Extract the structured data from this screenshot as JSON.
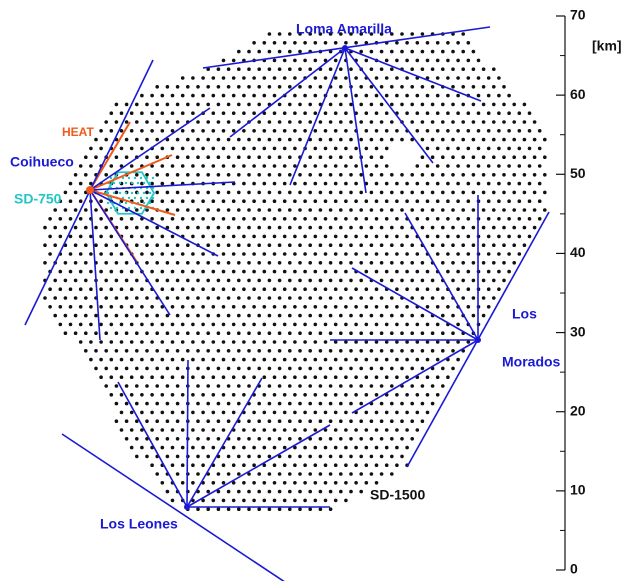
{
  "map": {
    "sites": {
      "loma_amarilla": "Loma Amarilla",
      "coihueco": "Coihueco",
      "heat": "HEAT",
      "sd_750": "SD-750",
      "los_morados": [
        "Los",
        "Morados"
      ],
      "los_leones": "Los Leones",
      "sd_1500": "SD-1500"
    },
    "scale": {
      "unit": "[km]",
      "lim": [
        0,
        70
      ],
      "ticks": [
        0,
        10,
        20,
        30,
        40,
        50,
        60,
        70
      ],
      "minor_ticks": [
        5,
        15,
        25,
        35,
        45,
        55,
        65
      ]
    }
  }
}
